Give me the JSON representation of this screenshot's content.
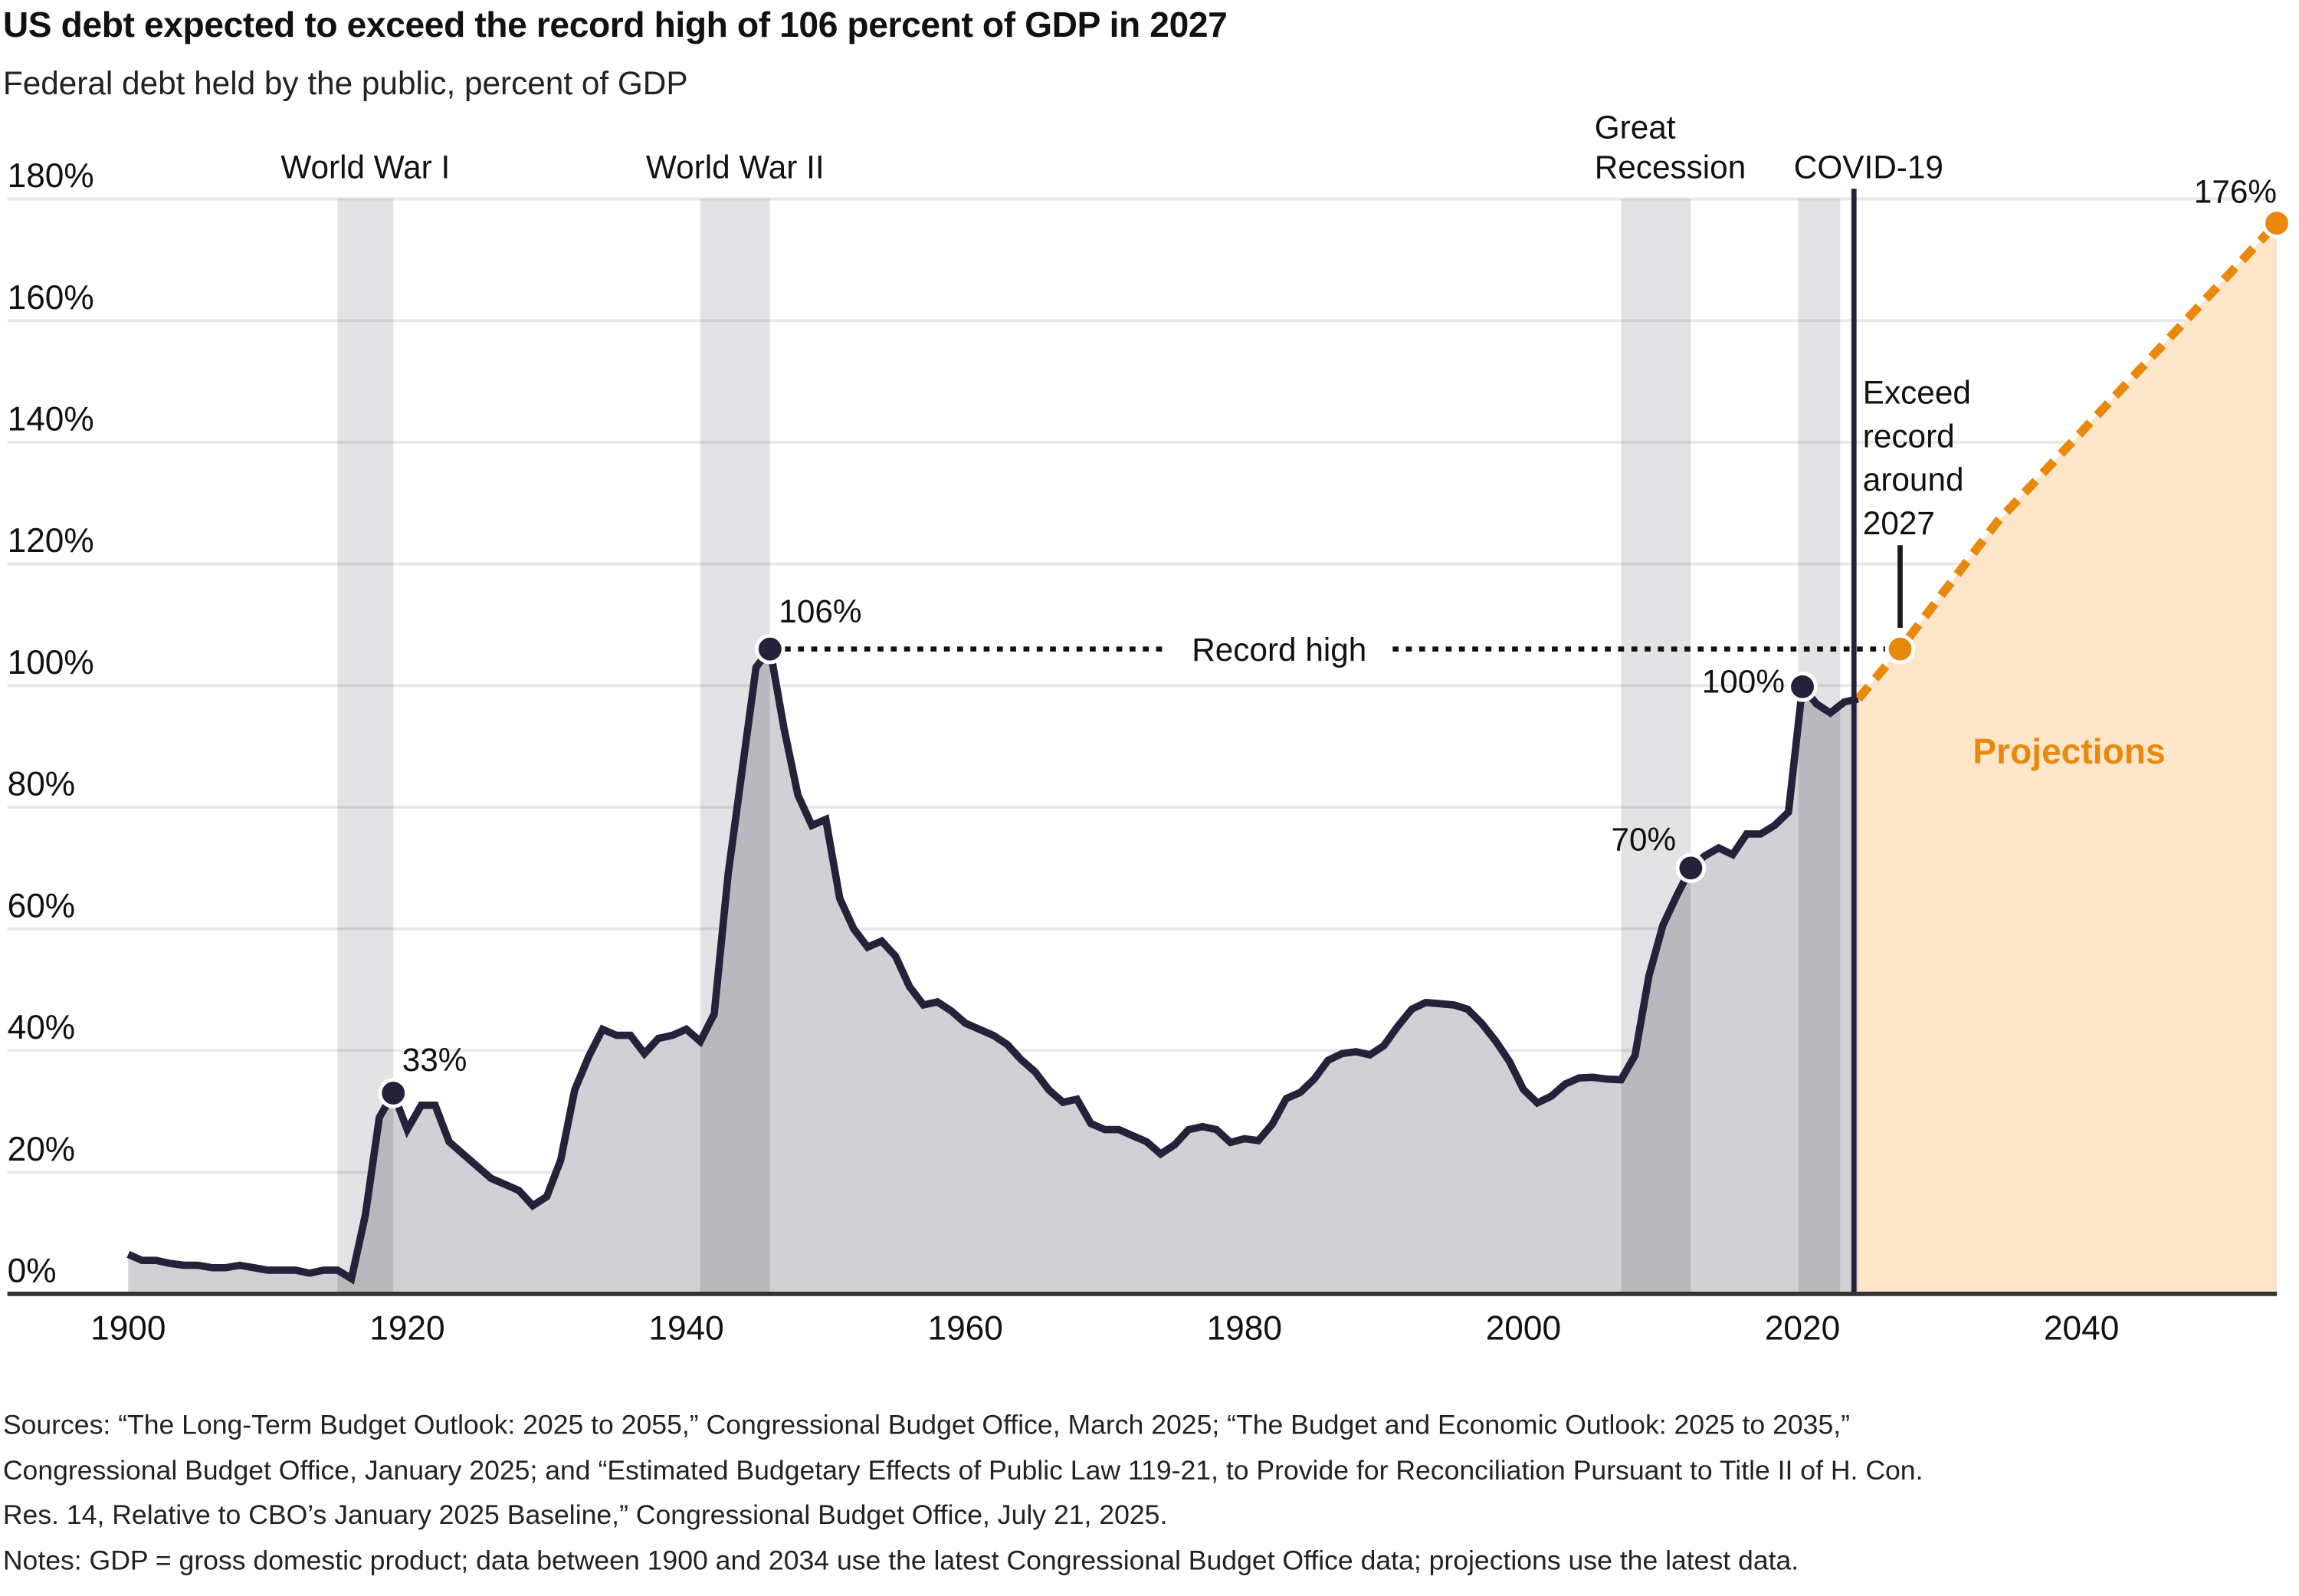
{
  "header": {
    "title": "US debt expected to exceed the record high of 106 percent of GDP in 2027",
    "subtitle": "Federal debt held by the public, percent of GDP"
  },
  "chart_data": {
    "type": "area",
    "title": "US debt expected to exceed the record high of 106 percent of GDP in 2027",
    "ylabel": "Federal debt held by the public, percent of GDP",
    "xlim": [
      1900,
      2054
    ],
    "ylim": [
      0,
      180
    ],
    "grid": true,
    "y_ticks": [
      0,
      20,
      40,
      60,
      80,
      100,
      120,
      140,
      160,
      180
    ],
    "y_tick_labels": [
      "0%",
      "20%",
      "40%",
      "60%",
      "80%",
      "100%",
      "120%",
      "140%",
      "160%",
      "180%"
    ],
    "x_ticks": [
      1900,
      1920,
      1940,
      1960,
      1980,
      2000,
      2020,
      2040
    ],
    "x_tick_labels": [
      "1900",
      "1920",
      "1940",
      "1960",
      "1980",
      "2000",
      "2020",
      "2040"
    ],
    "colors": {
      "historical_line": "#26213A",
      "historical_fill": "#D0D0D5",
      "projection": "#E8890C",
      "projection_fill": "#FCE5C8",
      "band": "#E3E3E6"
    },
    "historical": {
      "start_year": 1900,
      "values": [
        6.5,
        5.5,
        5.5,
        5,
        4.7,
        4.7,
        4.3,
        4.3,
        4.7,
        4.3,
        3.9,
        3.9,
        3.9,
        3.4,
        3.9,
        3.9,
        2.5,
        13,
        29,
        33,
        27,
        31,
        31,
        25,
        23,
        21,
        19,
        18,
        17,
        14.5,
        16,
        22,
        33.5,
        39,
        43.5,
        42.5,
        42.5,
        39.5,
        42,
        42.5,
        43.5,
        41.5,
        46,
        69,
        86,
        103,
        106,
        93,
        82,
        77,
        78,
        65,
        60,
        57,
        58,
        55.5,
        50.5,
        47.5,
        48,
        46.5,
        44.5,
        43.5,
        42.5,
        41,
        38.5,
        36.5,
        33.5,
        31.5,
        32,
        28,
        27,
        27,
        26,
        25,
        23,
        24.5,
        27,
        27.5,
        27,
        24.9,
        25.5,
        25.2,
        27.9,
        32.1,
        33.1,
        35.3,
        38.4,
        39.5,
        39.8,
        39.3,
        40.8,
        44,
        46.8,
        47.9,
        47.7,
        47.5,
        46.8,
        44.5,
        41.6,
        38.2,
        33.6,
        31.4,
        32.5,
        34.5,
        35.5,
        35.6,
        35.3,
        35.2,
        39.2,
        52.3,
        60.6,
        65.5,
        70,
        72,
        73.3,
        72.2,
        75.6,
        75.6,
        77,
        79.2,
        99.8,
        97,
        95.5,
        97.3,
        97.8
      ]
    },
    "projection": {
      "name": "Projections",
      "x": [
        2024,
        2027,
        2034,
        2054
      ],
      "values": [
        97.8,
        106,
        127,
        176
      ]
    },
    "projection_start_year": 2024,
    "bands": [
      {
        "label": "World War I",
        "start": 1915,
        "end": 1919
      },
      {
        "label": "World War II",
        "start": 1941,
        "end": 1946
      },
      {
        "label_lines": [
          "Great",
          "Recession"
        ],
        "start": 2007,
        "end": 2012
      },
      {
        "label": "COVID-19",
        "start": 2019.7,
        "end": 2022.7
      }
    ],
    "highlight_points": [
      {
        "year": 1919,
        "value": 33,
        "label": "33%"
      },
      {
        "year": 1946,
        "value": 106,
        "label": "106%"
      },
      {
        "year": 2012,
        "value": 70,
        "label": "70%"
      },
      {
        "year": 2020,
        "value": 99.8,
        "label": "100%"
      },
      {
        "year": 2027,
        "value": 106,
        "label": "",
        "projected": true
      },
      {
        "year": 2054,
        "value": 176,
        "label": "176%",
        "projected": true
      }
    ],
    "annotations": {
      "record_high": {
        "label": "Record high",
        "value": 106
      },
      "exceed": {
        "lines": [
          "Exceed",
          "record",
          "around",
          "2027"
        ],
        "year": 2027
      },
      "projections_label": "Projections"
    }
  },
  "footer": {
    "sources": [
      "Sources: “The Long-Term Budget Outlook: 2025 to 2055,” Congressional Budget Office, March 2025; “The Budget and Economic Outlook: 2025 to 2035,”",
      "Congressional Budget Office, January 2025; and “Estimated Budgetary Effects of Public Law 119-21, to Provide for Reconciliation Pursuant to Title II of H. Con.",
      "Res. 14, Relative to CBO’s January 2025 Baseline,” Congressional Budget Office, July 21, 2025."
    ],
    "notes": "Notes: GDP = gross domestic product; data between 1900 and 2034 use the latest Congressional Budget Office data; projections use the latest data."
  }
}
